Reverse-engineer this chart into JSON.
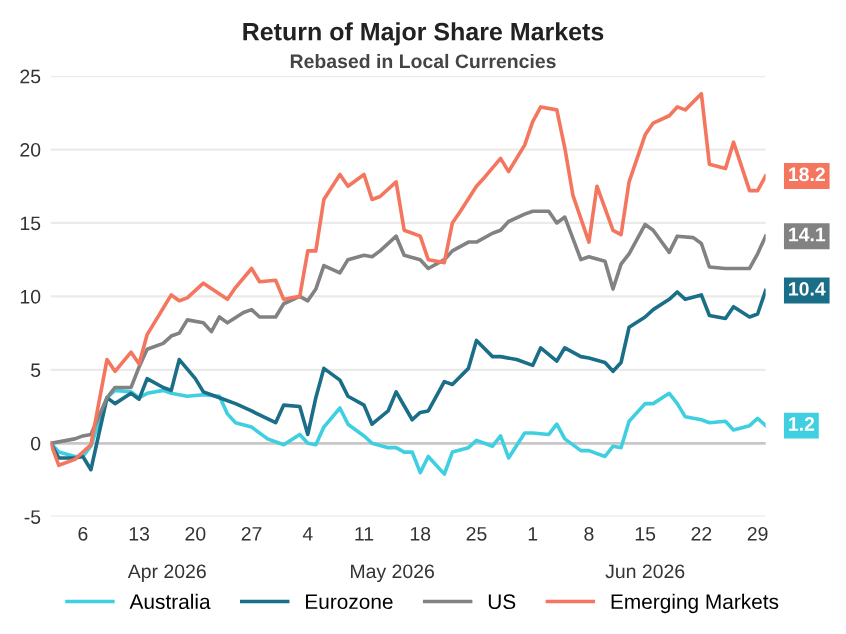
{
  "chart_data": {
    "type": "line",
    "title": "Return of Major Share Markets",
    "subtitle": "Rebased in Local Currencies",
    "ylim": [
      -5,
      25
    ],
    "yticks": [
      -5,
      0,
      5,
      10,
      15,
      20,
      25
    ],
    "xlim": [
      "2026-04-02",
      "2026-06-30"
    ],
    "xticks": [
      {
        "value": "2026-04-06",
        "label": "6"
      },
      {
        "value": "2026-04-13",
        "label": "13"
      },
      {
        "value": "2026-04-20",
        "label": "20"
      },
      {
        "value": "2026-04-27",
        "label": "27"
      },
      {
        "value": "2026-05-04",
        "label": "4"
      },
      {
        "value": "2026-05-11",
        "label": "11"
      },
      {
        "value": "2026-05-18",
        "label": "18"
      },
      {
        "value": "2026-05-25",
        "label": "25"
      },
      {
        "value": "2026-06-01",
        "label": "1"
      },
      {
        "value": "2026-06-08",
        "label": "8"
      },
      {
        "value": "2026-06-15",
        "label": "15"
      },
      {
        "value": "2026-06-22",
        "label": "22"
      },
      {
        "value": "2026-06-29",
        "label": "29"
      }
    ],
    "annotations": [
      "Apr 2026",
      "May 2026",
      "Jun 2026",
      {
        "text": "18.2",
        "x": "2026-06-30",
        "y": 18.2
      },
      {
        "text": "14.1",
        "x": "2026-06-30",
        "y": 14.1
      },
      {
        "text": "10.4",
        "x": "2026-06-30",
        "y": 10.4
      },
      {
        "text": "1.2",
        "x": "2026-06-30",
        "y": 1.2
      }
    ],
    "grid": "y",
    "legend": "bottom",
    "line_style": "solid",
    "marker": "none",
    "ref_lines": [
      {
        "axis": "y",
        "value": 0,
        "color": "#c8c8c8"
      }
    ],
    "series": [
      {
        "name": "Australia",
        "color": "#3fcfe0",
        "x": [
          "2026-04-02",
          "2026-04-03",
          "2026-04-05",
          "2026-04-06",
          "2026-04-07",
          "2026-04-09",
          "2026-04-10",
          "2026-04-12",
          "2026-04-13",
          "2026-04-14",
          "2026-04-16",
          "2026-04-17",
          "2026-04-19",
          "2026-04-21",
          "2026-04-23",
          "2026-04-24",
          "2026-04-25",
          "2026-04-27",
          "2026-04-29",
          "2026-05-01",
          "2026-05-03",
          "2026-05-04",
          "2026-05-05",
          "2026-05-06",
          "2026-05-08",
          "2026-05-09",
          "2026-05-11",
          "2026-05-12",
          "2026-05-14",
          "2026-05-15",
          "2026-05-16",
          "2026-05-17",
          "2026-05-18",
          "2026-05-19",
          "2026-05-21",
          "2026-05-22",
          "2026-05-24",
          "2026-05-25",
          "2026-05-27",
          "2026-05-28",
          "2026-05-29",
          "2026-05-31",
          "2026-06-01",
          "2026-06-03",
          "2026-06-04",
          "2026-06-05",
          "2026-06-07",
          "2026-06-08",
          "2026-06-10",
          "2026-06-11",
          "2026-06-12",
          "2026-06-13",
          "2026-06-15",
          "2026-06-16",
          "2026-06-18",
          "2026-06-19",
          "2026-06-20",
          "2026-06-22",
          "2026-06-23",
          "2026-06-25",
          "2026-06-26",
          "2026-06-28",
          "2026-06-29",
          "2026-06-30"
        ],
        "values": [
          0,
          -0.6,
          -0.9,
          -0.9,
          -0.2,
          3.1,
          3.6,
          3.5,
          3.1,
          3.4,
          3.6,
          3.4,
          3.2,
          3.3,
          3.2,
          2,
          1.4,
          1.1,
          0.3,
          -0.1,
          0.6,
          0,
          -0.1,
          1.1,
          2.4,
          1.3,
          0.5,
          0,
          -0.3,
          -0.3,
          -0.6,
          -0.6,
          -2,
          -0.9,
          -2.1,
          -0.6,
          -0.3,
          0.2,
          -0.2,
          0.5,
          -1,
          0.7,
          0.7,
          0.6,
          1.3,
          0.3,
          -0.5,
          -0.5,
          -0.9,
          -0.2,
          -0.3,
          1.5,
          2.7,
          2.7,
          3.4,
          2.7,
          1.8,
          1.6,
          1.4,
          1.5,
          0.9,
          1.2,
          1.7,
          1.2
        ]
      },
      {
        "name": "Eurozone",
        "color": "#1b6e88",
        "x": [
          "2026-04-02",
          "2026-04-03",
          "2026-04-05",
          "2026-04-06",
          "2026-04-07",
          "2026-04-09",
          "2026-04-10",
          "2026-04-12",
          "2026-04-13",
          "2026-04-14",
          "2026-04-16",
          "2026-04-17",
          "2026-04-18",
          "2026-04-20",
          "2026-04-21",
          "2026-04-23",
          "2026-04-25",
          "2026-04-27",
          "2026-04-30",
          "2026-05-01",
          "2026-05-03",
          "2026-05-04",
          "2026-05-05",
          "2026-05-06",
          "2026-05-08",
          "2026-05-09",
          "2026-05-11",
          "2026-05-12",
          "2026-05-14",
          "2026-05-15",
          "2026-05-17",
          "2026-05-18",
          "2026-05-19",
          "2026-05-21",
          "2026-05-22",
          "2026-05-24",
          "2026-05-25",
          "2026-05-27",
          "2026-05-28",
          "2026-05-30",
          "2026-06-01",
          "2026-06-02",
          "2026-06-04",
          "2026-06-05",
          "2026-06-07",
          "2026-06-08",
          "2026-06-10",
          "2026-06-11",
          "2026-06-12",
          "2026-06-13",
          "2026-06-15",
          "2026-06-16",
          "2026-06-18",
          "2026-06-19",
          "2026-06-20",
          "2026-06-22",
          "2026-06-23",
          "2026-06-25",
          "2026-06-26",
          "2026-06-28",
          "2026-06-29",
          "2026-06-30"
        ],
        "values": [
          0,
          -1,
          -1,
          -0.9,
          -1.8,
          3.1,
          2.7,
          3.4,
          3,
          4.4,
          3.8,
          3.6,
          5.7,
          4.4,
          3.5,
          3.1,
          2.7,
          2.2,
          1.4,
          2.6,
          2.5,
          0.6,
          3.1,
          5.1,
          4.3,
          3.2,
          2.6,
          1.3,
          2.2,
          3.5,
          1.6,
          2.1,
          2.2,
          4.2,
          4,
          5.1,
          7,
          5.9,
          5.9,
          5.7,
          5.3,
          6.5,
          5.6,
          6.5,
          5.9,
          5.8,
          5.5,
          4.9,
          5.5,
          7.9,
          8.6,
          9.1,
          9.8,
          10.3,
          9.8,
          10.1,
          8.7,
          8.5,
          9.3,
          8.6,
          8.8,
          10.4
        ]
      },
      {
        "name": "US",
        "color": "#828282",
        "x": [
          "2026-04-02",
          "2026-04-05",
          "2026-04-06",
          "2026-04-07",
          "2026-04-09",
          "2026-04-10",
          "2026-04-12",
          "2026-04-13",
          "2026-04-14",
          "2026-04-16",
          "2026-04-17",
          "2026-04-18",
          "2026-04-19",
          "2026-04-21",
          "2026-04-22",
          "2026-04-23",
          "2026-04-24",
          "2026-04-26",
          "2026-04-27",
          "2026-04-28",
          "2026-04-30",
          "2026-05-01",
          "2026-05-03",
          "2026-05-04",
          "2026-05-05",
          "2026-05-06",
          "2026-05-08",
          "2026-05-09",
          "2026-05-11",
          "2026-05-12",
          "2026-05-13",
          "2026-05-15",
          "2026-05-16",
          "2026-05-18",
          "2026-05-19",
          "2026-05-21",
          "2026-05-22",
          "2026-05-24",
          "2026-05-25",
          "2026-05-27",
          "2026-05-28",
          "2026-05-29",
          "2026-05-31",
          "2026-06-01",
          "2026-06-03",
          "2026-06-04",
          "2026-06-05",
          "2026-06-07",
          "2026-06-08",
          "2026-06-10",
          "2026-06-11",
          "2026-06-12",
          "2026-06-13",
          "2026-06-15",
          "2026-06-16",
          "2026-06-18",
          "2026-06-19",
          "2026-06-21",
          "2026-06-22",
          "2026-06-23",
          "2026-06-25",
          "2026-06-26",
          "2026-06-28",
          "2026-06-29",
          "2026-06-30"
        ],
        "values": [
          0,
          0.3,
          0.5,
          0.6,
          3.1,
          3.8,
          3.8,
          5.2,
          6.4,
          6.8,
          7.3,
          7.5,
          8.4,
          8.2,
          7.6,
          8.6,
          8.2,
          8.9,
          9.1,
          8.6,
          8.6,
          9.5,
          10,
          9.7,
          10.5,
          12.1,
          11.6,
          12.5,
          12.8,
          12.7,
          13.1,
          14.1,
          12.8,
          12.5,
          11.9,
          12.5,
          13.1,
          13.7,
          13.7,
          14.3,
          14.5,
          15.1,
          15.6,
          15.8,
          15.8,
          15,
          15.4,
          12.5,
          12.7,
          12.4,
          10.5,
          12.2,
          12.9,
          14.9,
          14.5,
          13,
          14.1,
          14,
          13.6,
          12,
          11.9,
          11.9,
          11.9,
          12.9,
          14.1
        ]
      },
      {
        "name": "Emerging Markets",
        "color": "#f4765e",
        "x": [
          "2026-04-02",
          "2026-04-03",
          "2026-04-05",
          "2026-04-06",
          "2026-04-07",
          "2026-04-09",
          "2026-04-10",
          "2026-04-12",
          "2026-04-13",
          "2026-04-14",
          "2026-04-17",
          "2026-04-18",
          "2026-04-19",
          "2026-04-21",
          "2026-04-24",
          "2026-04-25",
          "2026-04-27",
          "2026-04-28",
          "2026-04-30",
          "2026-05-01",
          "2026-05-03",
          "2026-05-04",
          "2026-05-05",
          "2026-05-06",
          "2026-05-08",
          "2026-05-09",
          "2026-05-11",
          "2026-05-12",
          "2026-05-13",
          "2026-05-15",
          "2026-05-16",
          "2026-05-18",
          "2026-05-19",
          "2026-05-21",
          "2026-05-22",
          "2026-05-23",
          "2026-05-25",
          "2026-05-26",
          "2026-05-28",
          "2026-05-29",
          "2026-05-31",
          "2026-06-01",
          "2026-06-02",
          "2026-06-04",
          "2026-06-05",
          "2026-06-06",
          "2026-06-08",
          "2026-06-09",
          "2026-06-11",
          "2026-06-12",
          "2026-06-13",
          "2026-06-15",
          "2026-06-16",
          "2026-06-18",
          "2026-06-19",
          "2026-06-20",
          "2026-06-22",
          "2026-06-23",
          "2026-06-25",
          "2026-06-26",
          "2026-06-28",
          "2026-06-29",
          "2026-06-30"
        ],
        "values": [
          0,
          -1.5,
          -1.1,
          -0.6,
          -0.1,
          5.7,
          4.9,
          6.2,
          5.4,
          7.4,
          10.1,
          9.7,
          9.9,
          10.9,
          9.8,
          10.6,
          11.9,
          11,
          11.1,
          9.8,
          10,
          13.1,
          13.1,
          16.6,
          18.3,
          17.5,
          18.3,
          16.6,
          16.8,
          17.8,
          14.5,
          14.1,
          12.5,
          12.3,
          15,
          15.8,
          17.5,
          18.1,
          19.4,
          18.5,
          20.3,
          21.9,
          22.9,
          22.7,
          20.1,
          16.9,
          13.7,
          17.5,
          14.5,
          14.2,
          17.8,
          21,
          21.8,
          22.3,
          22.9,
          22.7,
          23.8,
          19,
          18.7,
          20.5,
          17.2,
          17.2,
          18.2
        ]
      }
    ]
  }
}
